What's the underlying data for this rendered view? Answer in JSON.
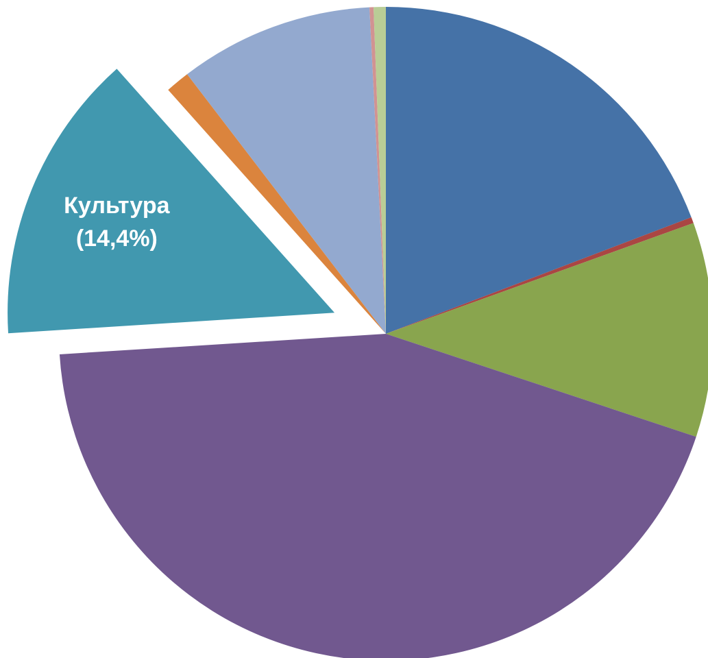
{
  "chart_data": {
    "type": "pie",
    "categories": [
      null,
      null,
      null,
      null,
      "Культура",
      null,
      null,
      null,
      null
    ],
    "values": [
      19.2,
      0.3,
      10.6,
      43.9,
      14.4,
      1.2,
      9.6,
      0.2,
      0.6
    ],
    "value_labels": [
      null,
      null,
      null,
      null,
      "(14,4%)",
      null,
      null,
      null,
      null
    ],
    "colors": [
      "#4572a7",
      "#aa4643",
      "#89a54e",
      "#71588f",
      "#4198af",
      "#db843d",
      "#93a9cf",
      "#d19392",
      "#b9cd96"
    ]
  }
}
